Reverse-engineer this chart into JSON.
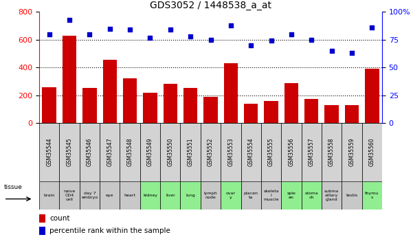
{
  "title": "GDS3052 / 1448538_a_at",
  "samples": [
    "GSM35544",
    "GSM35545",
    "GSM35546",
    "GSM35547",
    "GSM35548",
    "GSM35549",
    "GSM35550",
    "GSM35551",
    "GSM35552",
    "GSM35553",
    "GSM35554",
    "GSM35555",
    "GSM35556",
    "GSM35557",
    "GSM35558",
    "GSM35559",
    "GSM35560"
  ],
  "tissues": [
    "brain",
    "naive\nCD4\ncell",
    "day 7\nembryо",
    "eye",
    "heart",
    "kidney",
    "liver",
    "lung",
    "lymph\nnode",
    "ovar\ny",
    "placen\nta",
    "skeleta\nl\nmuscle",
    "sple\nen",
    "stoma\nch",
    "subma\nxillary\ngland",
    "testis",
    "thymu\ns"
  ],
  "tissue_colors": [
    "#c8c8c8",
    "#c8c8c8",
    "#c8c8c8",
    "#c8c8c8",
    "#c8c8c8",
    "#90ee90",
    "#90ee90",
    "#90ee90",
    "#c8c8c8",
    "#90ee90",
    "#c8c8c8",
    "#c8c8c8",
    "#90ee90",
    "#90ee90",
    "#c8c8c8",
    "#c8c8c8",
    "#90ee90"
  ],
  "counts": [
    260,
    630,
    255,
    455,
    325,
    220,
    285,
    255,
    190,
    430,
    140,
    160,
    290,
    175,
    130,
    130,
    390
  ],
  "percentiles": [
    80,
    93,
    80,
    85,
    84,
    77,
    84,
    78,
    75,
    88,
    70,
    74,
    80,
    75,
    65,
    63,
    86
  ],
  "left_ylim": [
    0,
    800
  ],
  "right_ylim": [
    0,
    100
  ],
  "left_yticks": [
    0,
    200,
    400,
    600,
    800
  ],
  "right_yticks": [
    0,
    25,
    50,
    75,
    100
  ],
  "right_yticklabels": [
    "0",
    "25",
    "50",
    "75",
    "100%"
  ],
  "bar_color": "#cc0000",
  "dot_color": "#0000cc",
  "grid_color": "#000000",
  "bg_color": "#ffffff",
  "legend_count_color": "#cc0000",
  "legend_dot_color": "#0000cc",
  "gsm_row_color": "#d3d3d3"
}
